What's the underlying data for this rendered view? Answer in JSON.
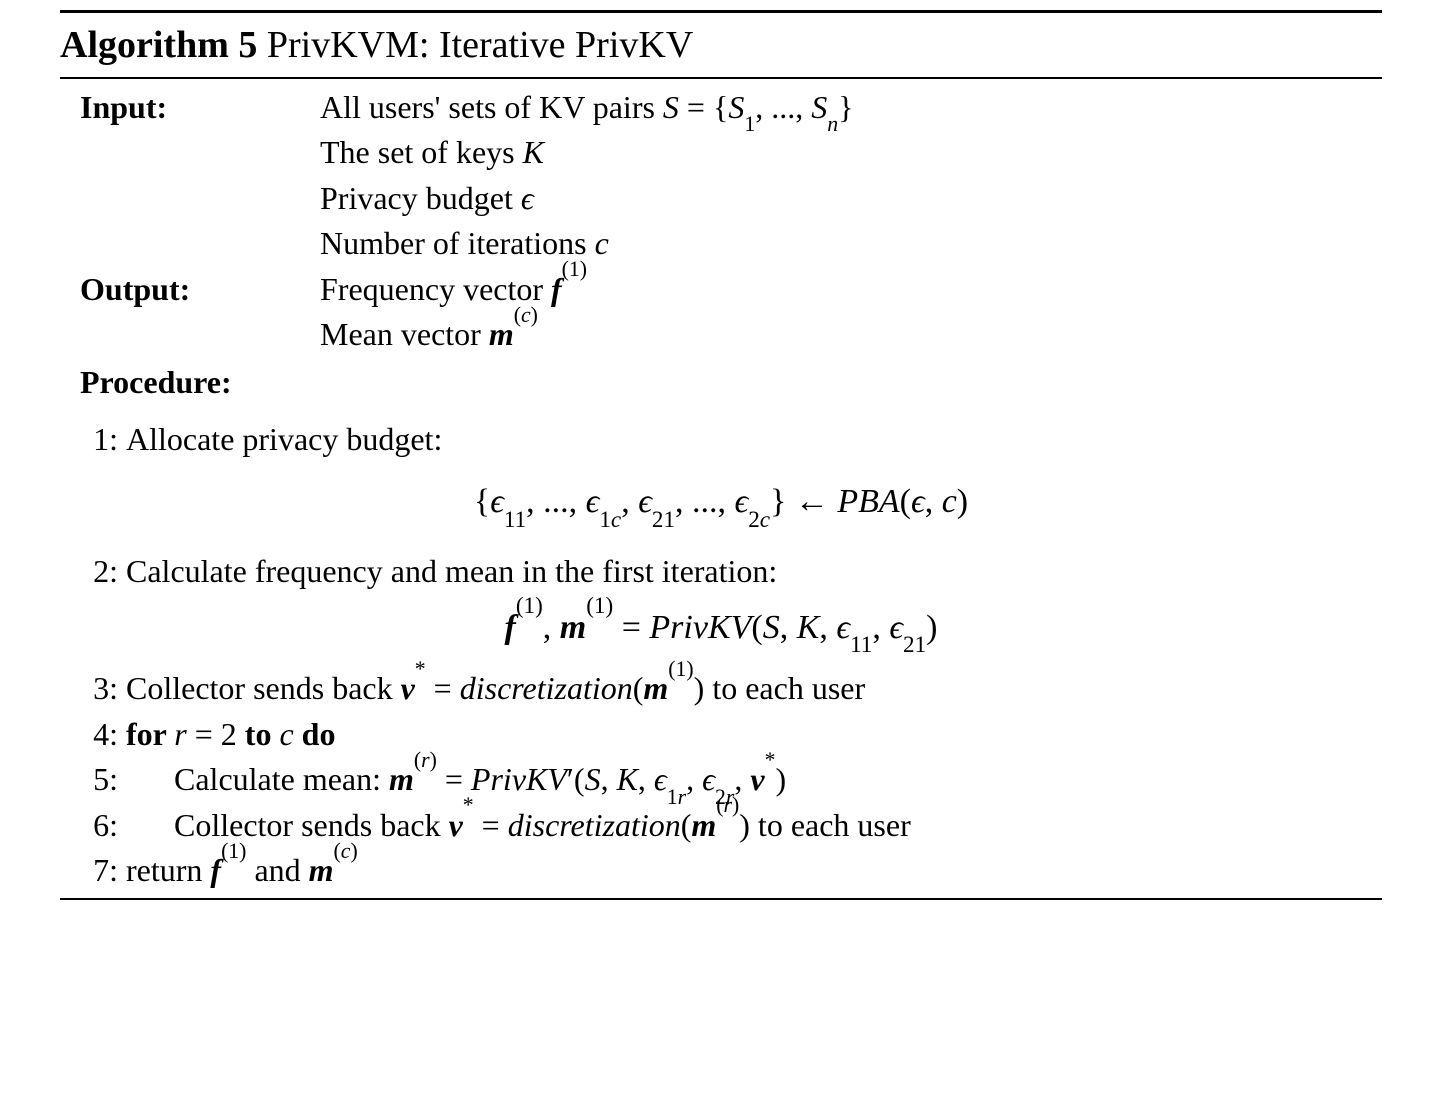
{
  "colors": {
    "text": "#000000",
    "background": "#ffffff",
    "rule": "#000000"
  },
  "typography": {
    "family": "Times New Roman",
    "base_size_pt": 32,
    "title_size_pt": 38,
    "equation_size_pt": 34
  },
  "algorithm": {
    "label": "Algorithm",
    "number": "5",
    "name": "PrivKVM: Iterative PrivKV"
  },
  "labels": {
    "input": "Input:",
    "output": "Output:",
    "procedure": "Procedure:"
  },
  "input_lines": {
    "l1_a": "All users' sets of KV pairs ",
    "l1_b": "S",
    "l1_c": " = {",
    "l1_d": "S",
    "l1_e": "1",
    "l1_f": ", ..., ",
    "l1_g": "S",
    "l1_h": "n",
    "l1_i": "}",
    "l2_a": "The set of keys ",
    "l2_b": "K",
    "l3_a": "Privacy budget ",
    "l3_b": "ϵ",
    "l4_a": "Number of iterations ",
    "l4_b": "c"
  },
  "output_lines": {
    "l1_a": "Frequency vector ",
    "l1_b": "f",
    "l1_c": "(1)",
    "l2_a": "Mean vector ",
    "l2_b": "m",
    "l2_c": "(",
    "l2_d": "c",
    "l2_e": ")"
  },
  "steps": {
    "s1": {
      "n": "1:",
      "txt": "Allocate privacy budget:"
    },
    "eq1": {
      "a": "{",
      "b": "ϵ",
      "c": "11",
      "d": ", ..., ",
      "e": "ϵ",
      "f": "1",
      "g": "c",
      "h": ", ",
      "i": "ϵ",
      "j": "21",
      "k": ", ..., ",
      "l": "ϵ",
      "m": "2",
      "n": "c",
      "o": "} ← ",
      "p": "PBA",
      "q": "(",
      "r": "ϵ",
      "s": ", ",
      "t": "c",
      "u": ")"
    },
    "s2": {
      "n": "2:",
      "txt": "Calculate frequency and mean in the first iteration:"
    },
    "eq2": {
      "a": "f",
      "b": "(1)",
      "c": ", ",
      "d": "m",
      "e": "(1)",
      "f": " = ",
      "g": "PrivKV",
      "h": "(",
      "i": "S",
      "j": ", ",
      "k": "K",
      "l": ", ",
      "m": "ϵ",
      "n": "11",
      "o": ", ",
      "p": "ϵ",
      "q": "21",
      "r": ")"
    },
    "s3": {
      "n": "3:",
      "a": "Collector sends back ",
      "b": "v",
      "c": "*",
      "d": " = ",
      "e": "discretization",
      "f": "(",
      "g": "m",
      "h": "(1)",
      "i": ")",
      "j": " to each user"
    },
    "s4": {
      "n": "4:",
      "a": "for ",
      "b": "r",
      "c": " = 2",
      "d": " to ",
      "e": "c",
      "f": " do"
    },
    "s5": {
      "n": "5:",
      "a": "Calculate mean: ",
      "b": "m",
      "c": "(",
      "d": "r",
      "e": ")",
      "f": " = ",
      "g": "PrivKV",
      "h": "′",
      "i": "(",
      "j": "S",
      "k": ", ",
      "l": "K",
      "m2": ", ",
      "n2": "ϵ",
      "o": "1",
      "p": "r",
      "q": ", ",
      "r2": "ϵ",
      "s": "2",
      "t": "r",
      "u": ", ",
      "v": "v",
      "w": "*",
      "x": ")"
    },
    "s6": {
      "n": "6:",
      "a": "Collector sends back ",
      "b": "v",
      "c": "*",
      "d": " = ",
      "e": "discretization",
      "f": "(",
      "g": "m",
      "h": "(",
      "i": "r",
      "j": ")",
      "k": ")",
      "l": " to each user"
    },
    "s7": {
      "n": "7:",
      "a": "return ",
      "b": "f",
      "c": "(1)",
      "d": " and ",
      "e": "m",
      "f": "(",
      "g": "c",
      "h": ")"
    }
  }
}
